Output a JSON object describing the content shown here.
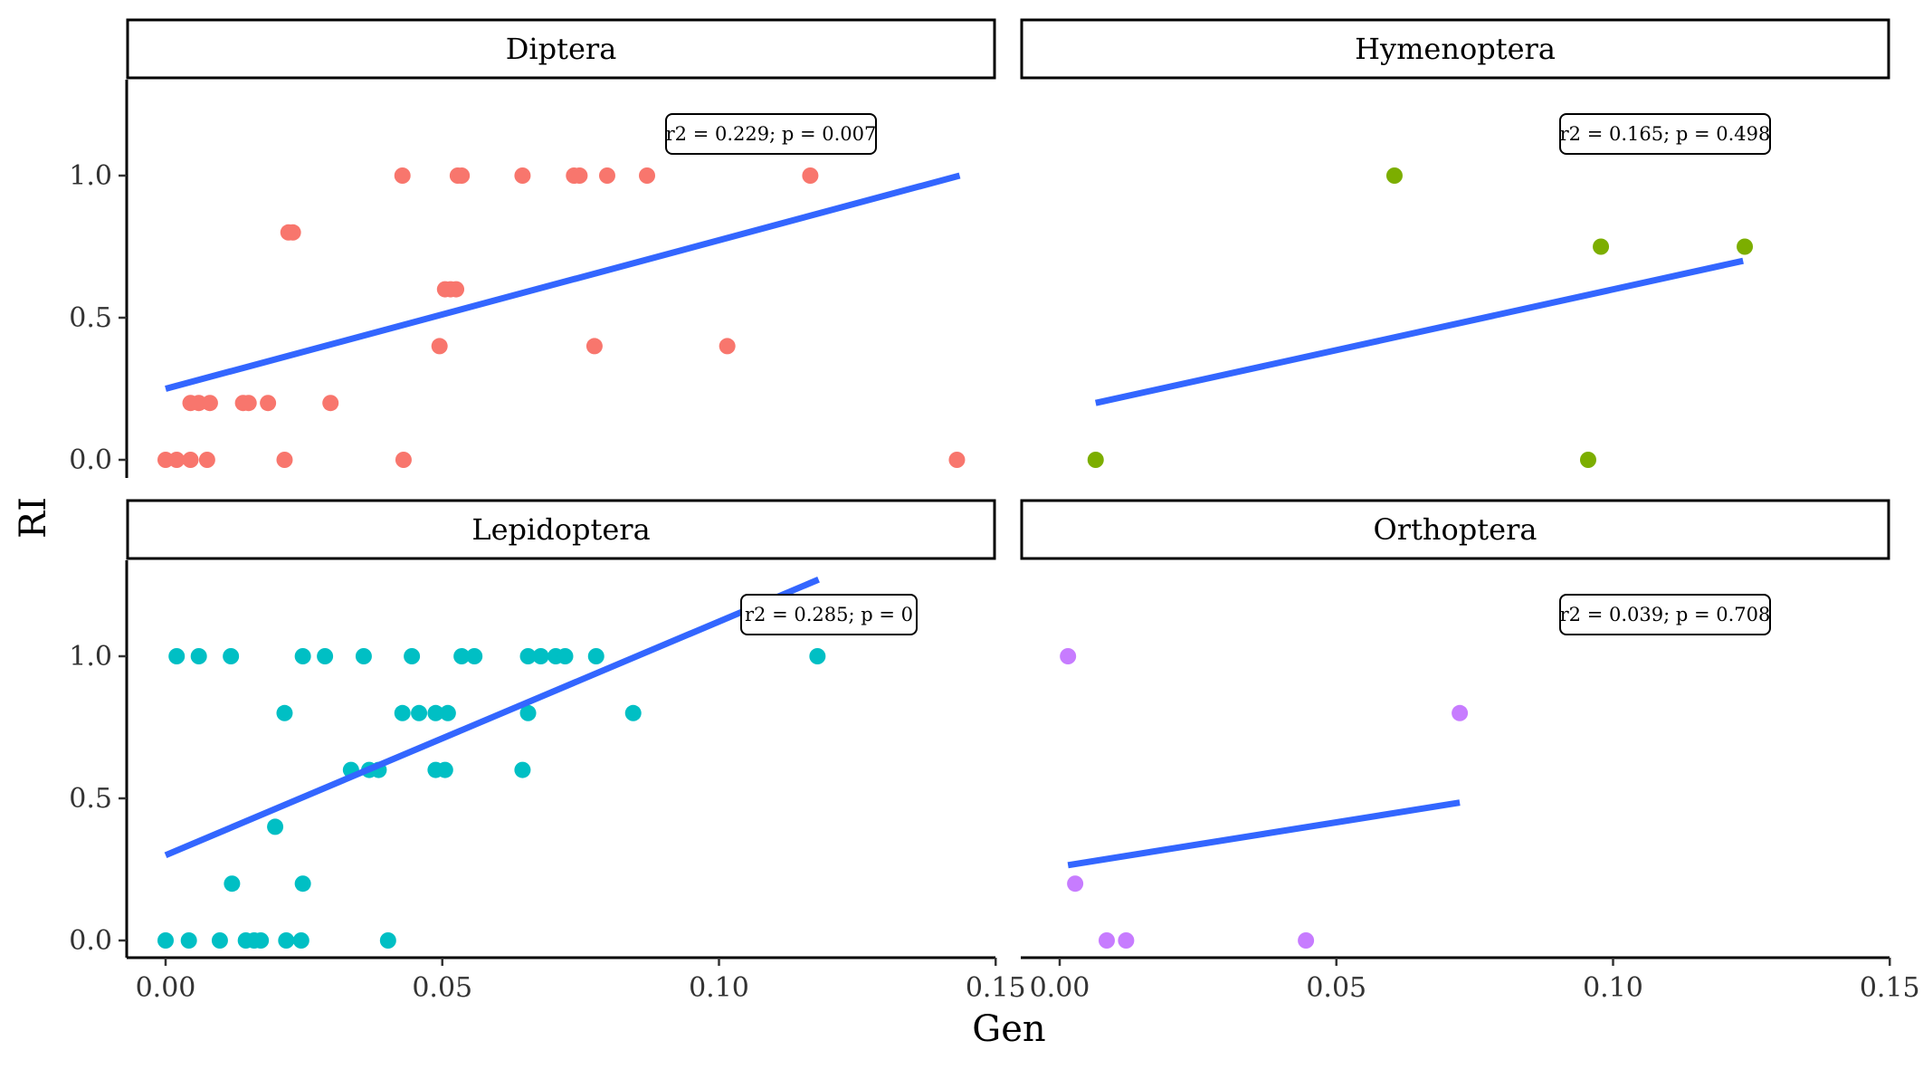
{
  "chart_data": {
    "type": "scatter",
    "facet_layout": "2x2",
    "xlabel": "Gen",
    "ylabel": "RI",
    "xlim": [
      -0.007,
      0.15
    ],
    "ylim": [
      -0.05,
      1.33
    ],
    "x_ticks": [
      0.0,
      0.05,
      0.1,
      0.15
    ],
    "x_tick_labels": [
      "0.00",
      "0.05",
      "0.10",
      "0.15"
    ],
    "y_ticks": [
      0.0,
      0.5,
      1.0
    ],
    "y_tick_labels": [
      "0.0",
      "0.5",
      "1.0"
    ],
    "grid": false,
    "line_color": "#3366ff",
    "panels": [
      {
        "name": "Diptera",
        "color": "#f8766d",
        "annotation": "r2 = 0.229; p = 0.007",
        "fit": {
          "x": [
            0.0,
            0.1435
          ],
          "y": [
            0.25,
            1.0
          ]
        },
        "points": [
          {
            "x": 0.0,
            "y": 0.0
          },
          {
            "x": 0.002,
            "y": 0.0
          },
          {
            "x": 0.0045,
            "y": 0.0
          },
          {
            "x": 0.0075,
            "y": 0.0
          },
          {
            "x": 0.0215,
            "y": 0.0
          },
          {
            "x": 0.043,
            "y": 0.0
          },
          {
            "x": 0.143,
            "y": 0.0
          },
          {
            "x": 0.0045,
            "y": 0.2
          },
          {
            "x": 0.006,
            "y": 0.2
          },
          {
            "x": 0.008,
            "y": 0.2
          },
          {
            "x": 0.014,
            "y": 0.2
          },
          {
            "x": 0.015,
            "y": 0.2
          },
          {
            "x": 0.0185,
            "y": 0.2
          },
          {
            "x": 0.0298,
            "y": 0.2
          },
          {
            "x": 0.0495,
            "y": 0.4
          },
          {
            "x": 0.0775,
            "y": 0.4
          },
          {
            "x": 0.1015,
            "y": 0.4
          },
          {
            "x": 0.0505,
            "y": 0.6
          },
          {
            "x": 0.0515,
            "y": 0.6
          },
          {
            "x": 0.0525,
            "y": 0.6
          },
          {
            "x": 0.0222,
            "y": 0.8
          },
          {
            "x": 0.023,
            "y": 0.8
          },
          {
            "x": 0.0428,
            "y": 1.0
          },
          {
            "x": 0.0528,
            "y": 1.0
          },
          {
            "x": 0.0535,
            "y": 1.0
          },
          {
            "x": 0.0645,
            "y": 1.0
          },
          {
            "x": 0.0738,
            "y": 1.0
          },
          {
            "x": 0.0748,
            "y": 1.0
          },
          {
            "x": 0.0798,
            "y": 1.0
          },
          {
            "x": 0.087,
            "y": 1.0
          },
          {
            "x": 0.1165,
            "y": 1.0
          }
        ]
      },
      {
        "name": "Hymenoptera",
        "color": "#7cae00",
        "annotation": "r2 = 0.165; p = 0.498",
        "fit": {
          "x": [
            0.0065,
            0.1235
          ],
          "y": [
            0.2,
            0.7
          ]
        },
        "points": [
          {
            "x": 0.0065,
            "y": 0.0
          },
          {
            "x": 0.0955,
            "y": 0.0
          },
          {
            "x": 0.0605,
            "y": 1.0
          },
          {
            "x": 0.0978,
            "y": 0.75
          },
          {
            "x": 0.1238,
            "y": 0.75
          }
        ]
      },
      {
        "name": "Lepidoptera",
        "color": "#00bfc4",
        "annotation": "r2 = 0.285; p = 0",
        "fit": {
          "x": [
            0.0,
            0.118
          ],
          "y": [
            0.3,
            1.27
          ]
        },
        "points": [
          {
            "x": 0.0,
            "y": 0.0
          },
          {
            "x": 0.0042,
            "y": 0.0
          },
          {
            "x": 0.0098,
            "y": 0.0
          },
          {
            "x": 0.0145,
            "y": 0.0
          },
          {
            "x": 0.016,
            "y": 0.0
          },
          {
            "x": 0.0172,
            "y": 0.0
          },
          {
            "x": 0.0218,
            "y": 0.0
          },
          {
            "x": 0.0245,
            "y": 0.0
          },
          {
            "x": 0.0402,
            "y": 0.0
          },
          {
            "x": 0.012,
            "y": 0.2
          },
          {
            "x": 0.0248,
            "y": 0.2
          },
          {
            "x": 0.0198,
            "y": 0.4
          },
          {
            "x": 0.0335,
            "y": 0.6
          },
          {
            "x": 0.0368,
            "y": 0.6
          },
          {
            "x": 0.0385,
            "y": 0.6
          },
          {
            "x": 0.0488,
            "y": 0.6
          },
          {
            "x": 0.0505,
            "y": 0.6
          },
          {
            "x": 0.0645,
            "y": 0.6
          },
          {
            "x": 0.0215,
            "y": 0.8
          },
          {
            "x": 0.0428,
            "y": 0.8
          },
          {
            "x": 0.0458,
            "y": 0.8
          },
          {
            "x": 0.0488,
            "y": 0.8
          },
          {
            "x": 0.051,
            "y": 0.8
          },
          {
            "x": 0.0655,
            "y": 0.8
          },
          {
            "x": 0.0845,
            "y": 0.8
          },
          {
            "x": 0.002,
            "y": 1.0
          },
          {
            "x": 0.006,
            "y": 1.0
          },
          {
            "x": 0.0118,
            "y": 1.0
          },
          {
            "x": 0.0248,
            "y": 1.0
          },
          {
            "x": 0.0288,
            "y": 1.0
          },
          {
            "x": 0.0358,
            "y": 1.0
          },
          {
            "x": 0.0445,
            "y": 1.0
          },
          {
            "x": 0.0535,
            "y": 1.0
          },
          {
            "x": 0.0558,
            "y": 1.0
          },
          {
            "x": 0.0655,
            "y": 1.0
          },
          {
            "x": 0.0678,
            "y": 1.0
          },
          {
            "x": 0.0705,
            "y": 1.0
          },
          {
            "x": 0.0722,
            "y": 1.0
          },
          {
            "x": 0.0778,
            "y": 1.0
          },
          {
            "x": 0.1178,
            "y": 1.0
          }
        ]
      },
      {
        "name": "Orthoptera",
        "color": "#c77cff",
        "annotation": "r2 = 0.039; p = 0.708",
        "fit": {
          "x": [
            0.0015,
            0.0723
          ],
          "y": [
            0.265,
            0.485
          ]
        },
        "points": [
          {
            "x": 0.0015,
            "y": 1.0
          },
          {
            "x": 0.0028,
            "y": 0.2
          },
          {
            "x": 0.0085,
            "y": 0.0
          },
          {
            "x": 0.012,
            "y": 0.0
          },
          {
            "x": 0.0445,
            "y": 0.0
          },
          {
            "x": 0.0723,
            "y": 0.8
          }
        ]
      }
    ]
  }
}
